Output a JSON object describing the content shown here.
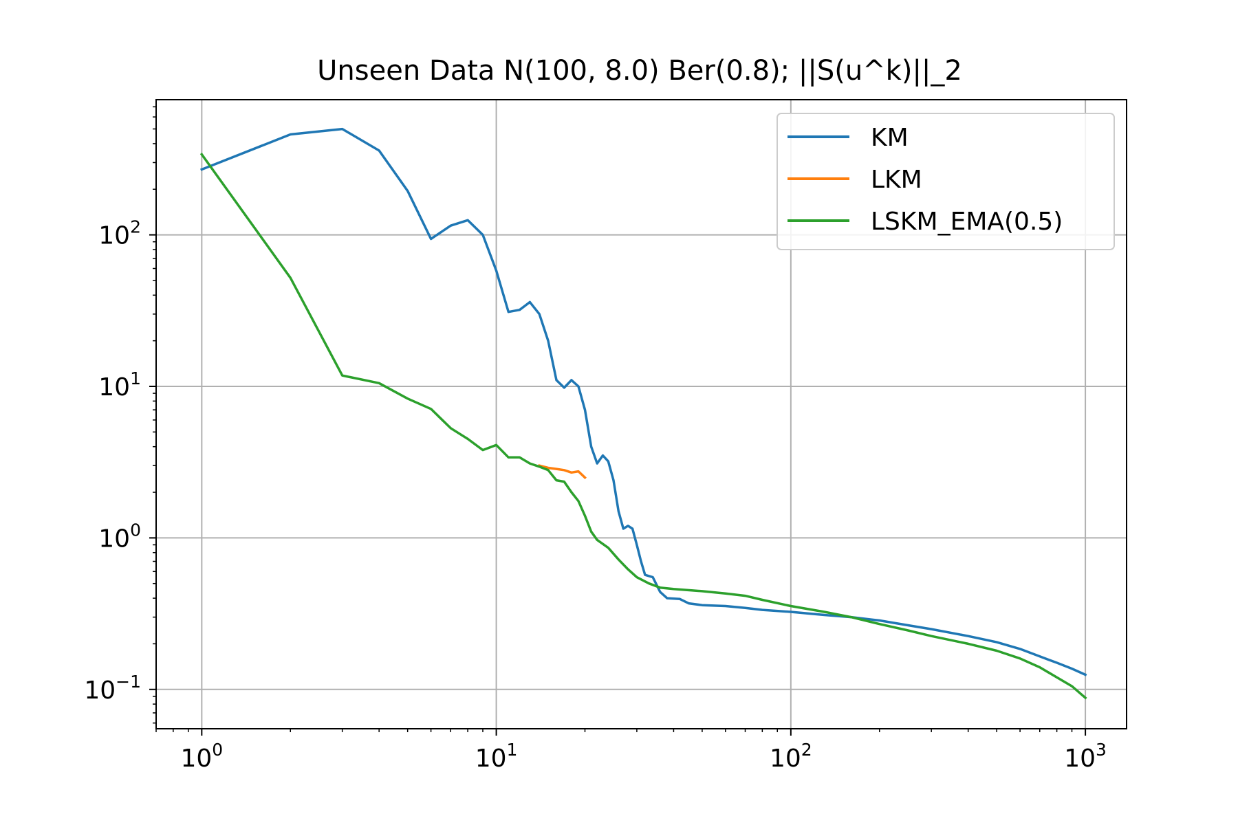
{
  "chart_data": {
    "type": "line",
    "title": "Unseen Data N(100, 8.0) Ber(0.8); ||S(u^k)||_2",
    "xlabel": "",
    "ylabel": "",
    "xscale": "log",
    "yscale": "log",
    "xlim": [
      0.7,
      1380
    ],
    "ylim": [
      0.055,
      780
    ],
    "xticks": [
      {
        "value": 1,
        "base": "10",
        "exp": "0"
      },
      {
        "value": 10,
        "base": "10",
        "exp": "1"
      },
      {
        "value": 100,
        "base": "10",
        "exp": "2"
      },
      {
        "value": 1000,
        "base": "10",
        "exp": "3"
      }
    ],
    "yticks": [
      {
        "value": 0.1,
        "base": "10",
        "exp": "−1"
      },
      {
        "value": 1,
        "base": "10",
        "exp": "0"
      },
      {
        "value": 10,
        "base": "10",
        "exp": "1"
      },
      {
        "value": 100,
        "base": "10",
        "exp": "2"
      }
    ],
    "grid": true,
    "legend_position": "top-right",
    "series": [
      {
        "name": "KM",
        "color": "#1f77b4",
        "points": [
          [
            1,
            270
          ],
          [
            2,
            460
          ],
          [
            3,
            500
          ],
          [
            4,
            360
          ],
          [
            5,
            195
          ],
          [
            6,
            94
          ],
          [
            7,
            115
          ],
          [
            8,
            125
          ],
          [
            9,
            100
          ],
          [
            10,
            58
          ],
          [
            11,
            31
          ],
          [
            12,
            32
          ],
          [
            13,
            36
          ],
          [
            14,
            30
          ],
          [
            15,
            20
          ],
          [
            16,
            11
          ],
          [
            17,
            9.8
          ],
          [
            18,
            11
          ],
          [
            19,
            10
          ],
          [
            20,
            7
          ],
          [
            21,
            4
          ],
          [
            22,
            3.1
          ],
          [
            23,
            3.5
          ],
          [
            24,
            3.2
          ],
          [
            25,
            2.4
          ],
          [
            26,
            1.5
          ],
          [
            27,
            1.15
          ],
          [
            28,
            1.2
          ],
          [
            29,
            1.15
          ],
          [
            30,
            0.9
          ],
          [
            31,
            0.7
          ],
          [
            32,
            0.57
          ],
          [
            34,
            0.55
          ],
          [
            36,
            0.44
          ],
          [
            38,
            0.4
          ],
          [
            42,
            0.395
          ],
          [
            45,
            0.37
          ],
          [
            50,
            0.36
          ],
          [
            60,
            0.355
          ],
          [
            70,
            0.345
          ],
          [
            80,
            0.335
          ],
          [
            100,
            0.325
          ],
          [
            130,
            0.31
          ],
          [
            160,
            0.3
          ],
          [
            200,
            0.285
          ],
          [
            250,
            0.265
          ],
          [
            300,
            0.25
          ],
          [
            400,
            0.225
          ],
          [
            500,
            0.205
          ],
          [
            600,
            0.185
          ],
          [
            700,
            0.165
          ],
          [
            800,
            0.15
          ],
          [
            900,
            0.137
          ],
          [
            1000,
            0.125
          ]
        ]
      },
      {
        "name": "LKM",
        "color": "#ff7f0e",
        "points": [
          [
            14,
            3.0
          ],
          [
            15,
            2.9
          ],
          [
            16,
            2.85
          ],
          [
            17,
            2.8
          ],
          [
            18,
            2.7
          ],
          [
            19,
            2.75
          ],
          [
            20,
            2.5
          ]
        ]
      },
      {
        "name": "LSKM_EMA(0.5)",
        "color": "#2ca02c",
        "points": [
          [
            1,
            340
          ],
          [
            2,
            52
          ],
          [
            3,
            11.8
          ],
          [
            4,
            10.5
          ],
          [
            5,
            8.3
          ],
          [
            6,
            7.1
          ],
          [
            7,
            5.3
          ],
          [
            8,
            4.5
          ],
          [
            9,
            3.8
          ],
          [
            10,
            4.1
          ],
          [
            11,
            3.4
          ],
          [
            12,
            3.4
          ],
          [
            13,
            3.1
          ],
          [
            14,
            2.95
          ],
          [
            15,
            2.8
          ],
          [
            16,
            2.4
          ],
          [
            17,
            2.35
          ],
          [
            18,
            2.0
          ],
          [
            19,
            1.75
          ],
          [
            20,
            1.4
          ],
          [
            21,
            1.1
          ],
          [
            22,
            0.97
          ],
          [
            24,
            0.86
          ],
          [
            26,
            0.72
          ],
          [
            28,
            0.62
          ],
          [
            30,
            0.55
          ],
          [
            33,
            0.5
          ],
          [
            36,
            0.47
          ],
          [
            40,
            0.46
          ],
          [
            50,
            0.445
          ],
          [
            60,
            0.43
          ],
          [
            70,
            0.415
          ],
          [
            80,
            0.39
          ],
          [
            100,
            0.355
          ],
          [
            130,
            0.325
          ],
          [
            160,
            0.3
          ],
          [
            200,
            0.27
          ],
          [
            250,
            0.245
          ],
          [
            300,
            0.225
          ],
          [
            400,
            0.2
          ],
          [
            500,
            0.18
          ],
          [
            600,
            0.16
          ],
          [
            700,
            0.14
          ],
          [
            800,
            0.12
          ],
          [
            900,
            0.105
          ],
          [
            1000,
            0.088
          ]
        ]
      }
    ]
  }
}
